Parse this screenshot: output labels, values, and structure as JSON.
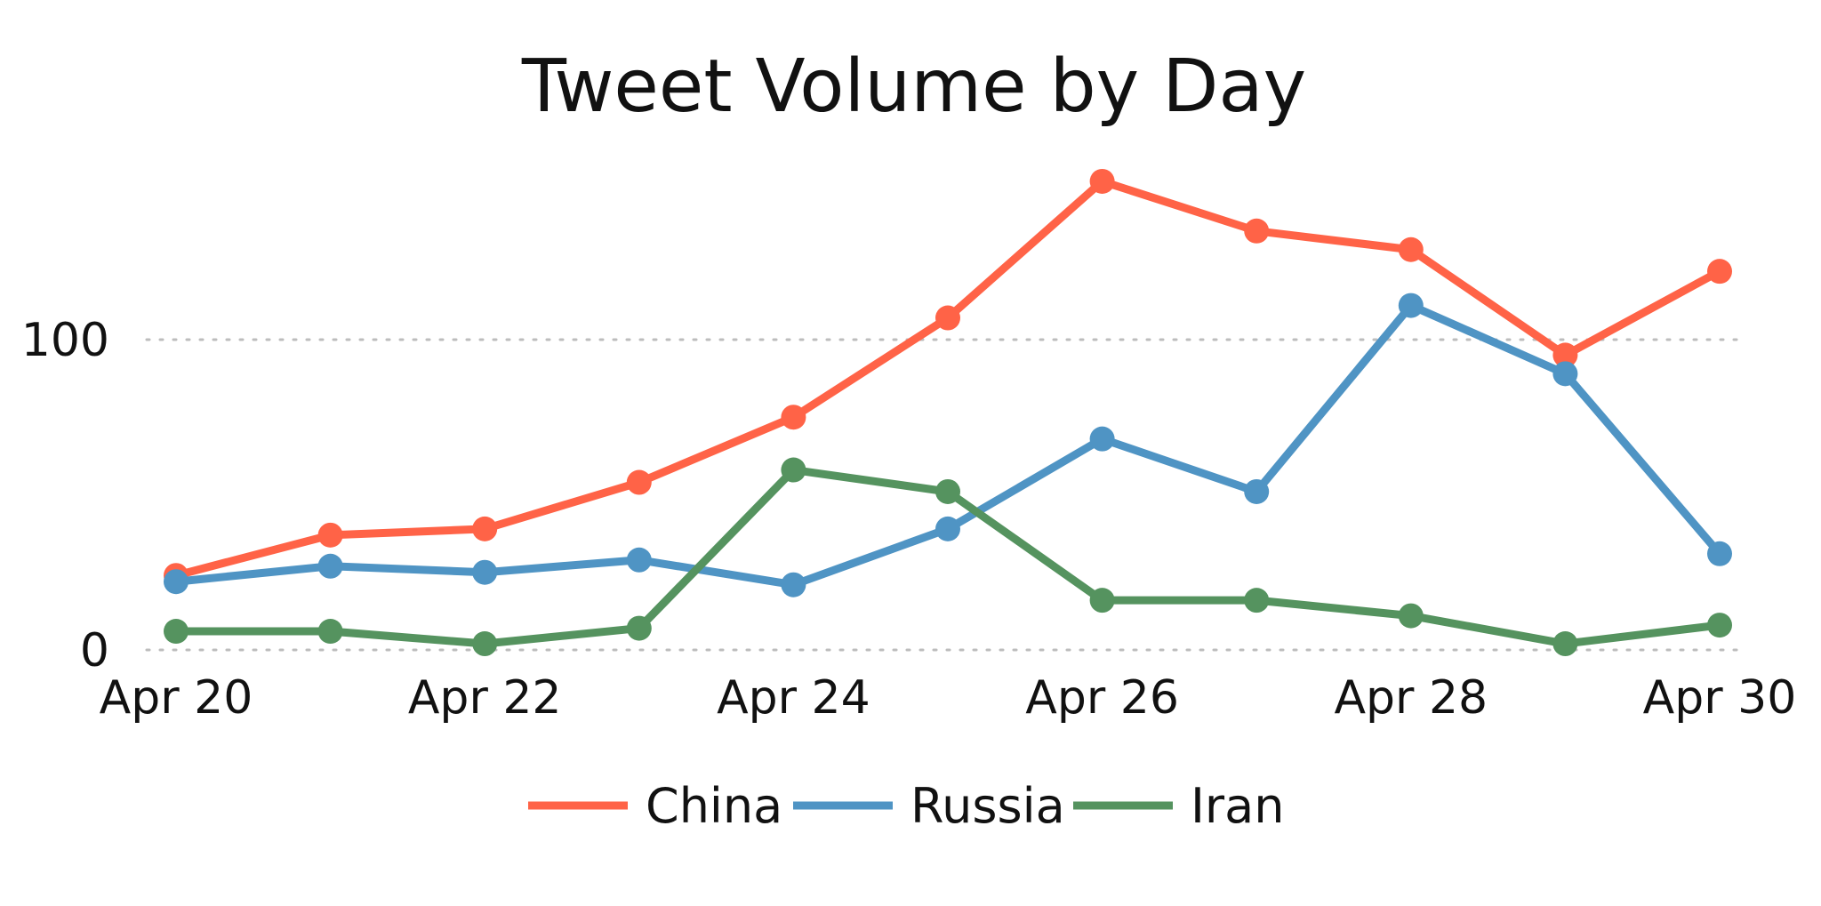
{
  "chart_data": {
    "type": "line",
    "title": "Tweet Volume by Day",
    "xlabel": "",
    "ylabel": "",
    "x": [
      "Apr 20",
      "Apr 21",
      "Apr 22",
      "Apr 23",
      "Apr 24",
      "Apr 25",
      "Apr 26",
      "Apr 27",
      "Apr 28",
      "Apr 29",
      "Apr 30"
    ],
    "x_tick_labels": [
      "Apr 20",
      "Apr 22",
      "Apr 24",
      "Apr 26",
      "Apr 28",
      "Apr 30"
    ],
    "y_tick_values": [
      0,
      100
    ],
    "y_tick_labels": [
      "0",
      "100"
    ],
    "ylim": [
      0,
      155
    ],
    "grid": "horizontal dotted",
    "legend_position": "bottom",
    "series": [
      {
        "name": "China",
        "color": "#ff6347",
        "values": [
          24,
          37,
          39,
          54,
          75,
          107,
          151,
          135,
          129,
          95,
          122
        ]
      },
      {
        "name": "Russia",
        "color": "#4f94c4",
        "values": [
          22,
          27,
          25,
          29,
          21,
          39,
          68,
          51,
          111,
          89,
          31
        ]
      },
      {
        "name": "Iran",
        "color": "#55935f",
        "values": [
          6,
          6,
          2,
          7,
          58,
          51,
          16,
          16,
          11,
          2,
          8
        ]
      }
    ]
  }
}
